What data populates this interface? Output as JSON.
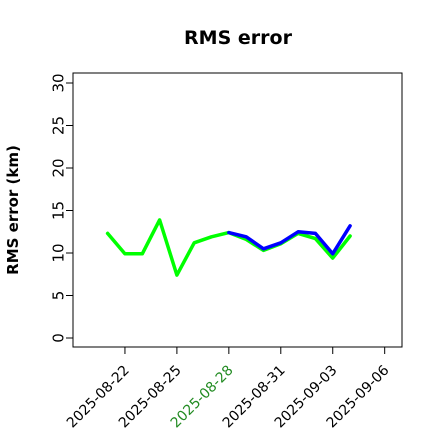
{
  "chart_data": {
    "type": "line",
    "title": "RMS error",
    "xlabel": "",
    "ylabel": "RMS error (km)",
    "ylim": [
      0,
      30
    ],
    "yticks": [
      0,
      5,
      10,
      15,
      20,
      25,
      30
    ],
    "x_axis_type": "date",
    "xlim": [
      "2025-08-19",
      "2025-09-07"
    ],
    "xticks": [
      "2025-08-22",
      "2025-08-25",
      "2025-08-28",
      "2025-08-31",
      "2025-09-03",
      "2025-09-06"
    ],
    "highlighted_xtick": "2025-08-28",
    "highlight_color": "#228B22",
    "grid": false,
    "legend": "none",
    "series": [
      {
        "color": "#0000ff",
        "x": [
          "2025-08-28",
          "2025-08-29",
          "2025-08-30",
          "2025-08-31",
          "2025-09-01",
          "2025-09-02",
          "2025-09-03",
          "2025-09-04"
        ],
        "y": [
          12.4,
          11.9,
          10.5,
          11.2,
          12.5,
          12.3,
          9.9,
          13.2
        ]
      },
      {
        "color": "#00ff00",
        "x": [
          "2025-08-21",
          "2025-08-22",
          "2025-08-23",
          "2025-08-24",
          "2025-08-25",
          "2025-08-26",
          "2025-08-27",
          "2025-08-28",
          "2025-08-29",
          "2025-08-30",
          "2025-08-31",
          "2025-09-01",
          "2025-09-02",
          "2025-09-03",
          "2025-09-04"
        ],
        "y": [
          12.3,
          9.9,
          9.9,
          13.9,
          7.4,
          11.2,
          11.9,
          12.4,
          11.6,
          10.3,
          11.1,
          12.3,
          11.7,
          9.4,
          12.0
        ]
      }
    ]
  }
}
